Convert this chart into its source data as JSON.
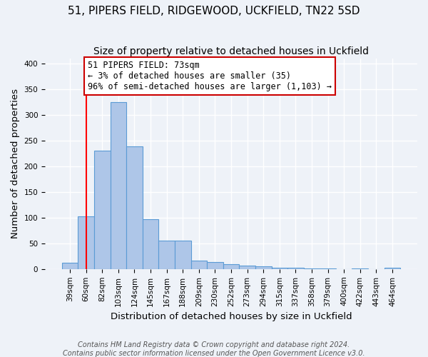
{
  "title": "51, PIPERS FIELD, RIDGEWOOD, UCKFIELD, TN22 5SD",
  "subtitle": "Size of property relative to detached houses in Uckfield",
  "xlabel": "Distribution of detached houses by size in Uckfield",
  "ylabel": "Number of detached properties",
  "bin_labels": [
    "39sqm",
    "60sqm",
    "82sqm",
    "103sqm",
    "124sqm",
    "145sqm",
    "167sqm",
    "188sqm",
    "209sqm",
    "230sqm",
    "252sqm",
    "273sqm",
    "294sqm",
    "315sqm",
    "337sqm",
    "358sqm",
    "379sqm",
    "400sqm",
    "422sqm",
    "443sqm",
    "464sqm"
  ],
  "bar_heights": [
    12,
    102,
    230,
    325,
    238,
    97,
    55,
    55,
    16,
    14,
    10,
    7,
    5,
    3,
    2,
    1,
    1,
    0,
    1,
    0,
    3
  ],
  "bar_color": "#aec6e8",
  "bar_edge_color": "#5b9bd5",
  "red_line_x": 1.5,
  "annotation_title": "51 PIPERS FIELD: 73sqm",
  "annotation_line2": "← 3% of detached houses are smaller (35)",
  "annotation_line3": "96% of semi-detached houses are larger (1,103) →",
  "annotation_box_color": "#ffffff",
  "annotation_box_edge_color": "#cc0000",
  "ylim": [
    0,
    410
  ],
  "yticks": [
    0,
    50,
    100,
    150,
    200,
    250,
    300,
    350,
    400
  ],
  "footer_line1": "Contains HM Land Registry data © Crown copyright and database right 2024.",
  "footer_line2": "Contains public sector information licensed under the Open Government Licence v3.0.",
  "background_color": "#eef2f8",
  "grid_color": "#ffffff",
  "title_fontsize": 11,
  "subtitle_fontsize": 10,
  "axis_label_fontsize": 9.5,
  "tick_fontsize": 7.5,
  "footer_fontsize": 7,
  "annotation_fontsize": 8.5
}
